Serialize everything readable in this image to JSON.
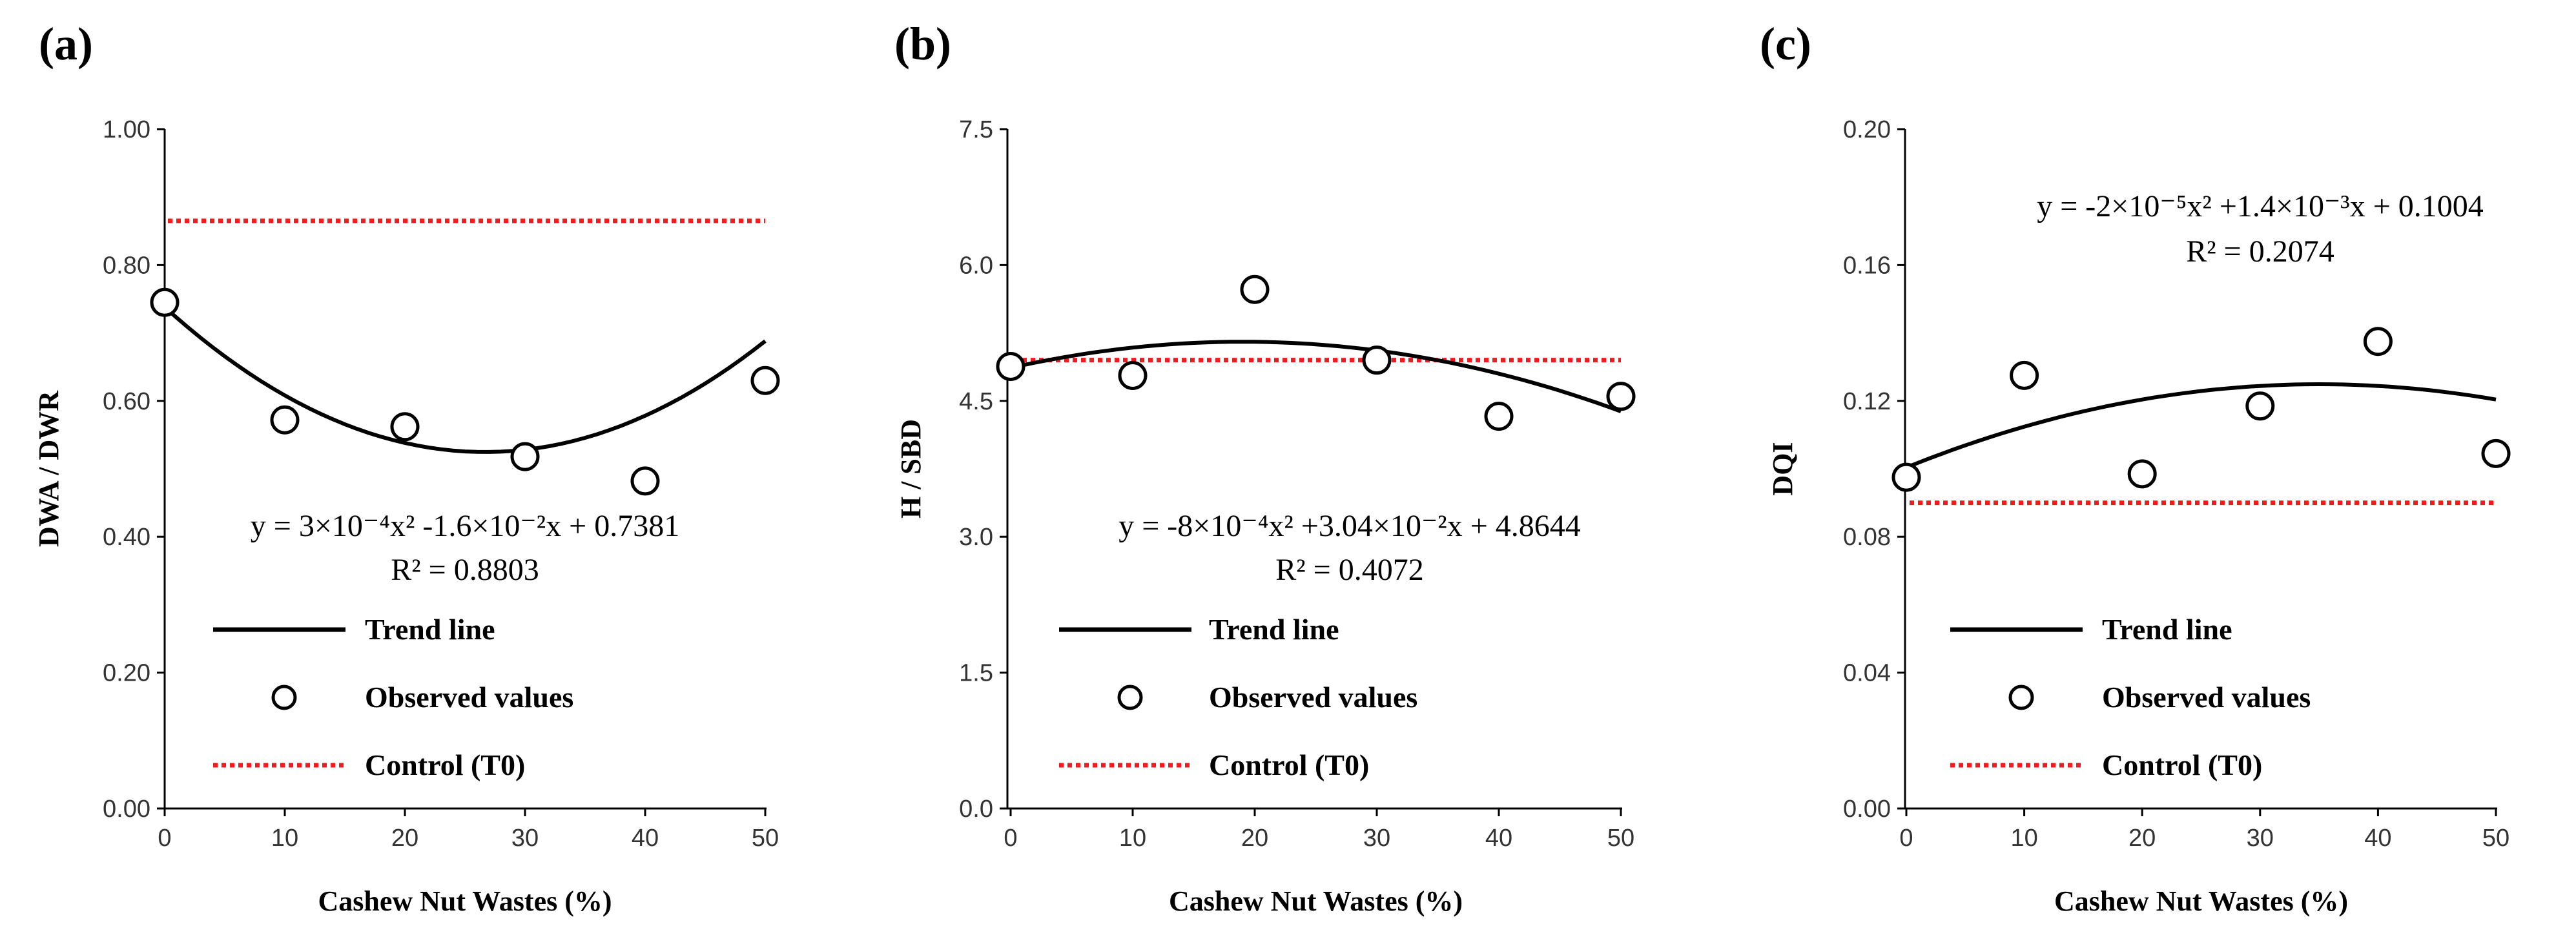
{
  "chart_data": [
    {
      "type": "scatter",
      "panel_label": "(a)",
      "xlabel": "Cashew Nut Wastes (%)",
      "ylabel": "DWA / DWR",
      "xlim": [
        0,
        50
      ],
      "ylim": [
        0,
        1.0
      ],
      "x_ticks": [
        "0",
        "10",
        "20",
        "30",
        "40",
        "50"
      ],
      "y_ticks": [
        "0.00",
        "0.20",
        "0.40",
        "0.60",
        "0.80",
        "1.00"
      ],
      "observed": {
        "x": [
          0,
          10,
          20,
          30,
          40,
          50
        ],
        "y": [
          0.745,
          0.572,
          0.562,
          0.518,
          0.482,
          0.63
        ]
      },
      "trend": {
        "a": 0.0003,
        "b": -0.016,
        "c": 0.7381
      },
      "control": 0.865,
      "equation": "y = 3×10⁻⁴x² -1.6×10⁻²x + 0.7381",
      "r2": "R² = 0.8803",
      "legend": [
        "Trend  line",
        "Observed values",
        "Control  (T0)"
      ]
    },
    {
      "type": "scatter",
      "panel_label": "(b)",
      "xlabel": "Cashew Nut Wastes (%)",
      "ylabel": "H / SBD",
      "xlim": [
        0,
        50
      ],
      "ylim": [
        0,
        7.5
      ],
      "x_ticks": [
        "0",
        "10",
        "20",
        "30",
        "40",
        "50"
      ],
      "y_ticks": [
        "0.0",
        "1.5",
        "3.0",
        "4.5",
        "6.0",
        "7.5"
      ],
      "observed": {
        "x": [
          0,
          10,
          20,
          30,
          40,
          50
        ],
        "y": [
          4.88,
          4.78,
          5.73,
          4.95,
          4.33,
          4.55
        ]
      },
      "trend": {
        "a": -0.0008,
        "b": 0.0304,
        "c": 4.8644
      },
      "control": 4.95,
      "equation": "y = -8×10⁻⁴x² +3.04×10⁻²x + 4.8644",
      "r2": "R² = 0.4072",
      "legend": [
        "Trend  line",
        "Observed values",
        "Control  (T0)"
      ]
    },
    {
      "type": "scatter",
      "panel_label": "(c)",
      "xlabel": "Cashew Nut Wastes (%)",
      "ylabel": "DQI",
      "xlim": [
        0,
        50
      ],
      "ylim": [
        0,
        0.2
      ],
      "x_ticks": [
        "0",
        "10",
        "20",
        "30",
        "40",
        "50"
      ],
      "y_ticks": [
        "0.00",
        "0.04",
        "0.08",
        "0.12",
        "0.16",
        "0.20"
      ],
      "observed": {
        "x": [
          0,
          10,
          20,
          30,
          40,
          50
        ],
        "y": [
          0.0975,
          0.1275,
          0.0985,
          0.1185,
          0.1375,
          0.1045
        ]
      },
      "trend": {
        "a": -2e-05,
        "b": 0.0014,
        "c": 0.1004
      },
      "control": 0.09,
      "equation": "y = -2×10⁻⁵x² +1.4×10⁻³x + 0.1004",
      "r2": "R² = 0.2074",
      "legend": [
        "Trend  line",
        "Observed values",
        "Control  (T0)"
      ]
    }
  ]
}
